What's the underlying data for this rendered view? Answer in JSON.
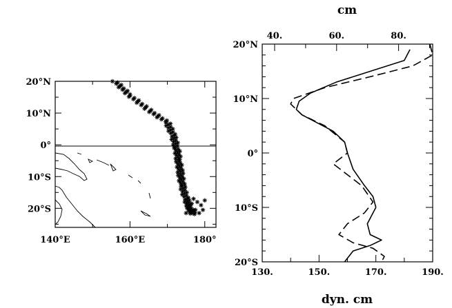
{
  "chart_data": [
    {
      "type": "scatter",
      "title": "",
      "xlabel": "",
      "ylabel": "",
      "xlim": [
        140,
        183
      ],
      "ylim": [
        -26,
        20
      ],
      "x_ticks": [
        140,
        160,
        180
      ],
      "x_tick_labels": [
        "140°E",
        "160°E",
        "180°"
      ],
      "y_ticks": [
        20,
        10,
        0,
        -10,
        -20
      ],
      "y_tick_labels": [
        "20°N",
        "10°N",
        "0°",
        "10°S",
        "20°S"
      ],
      "marker": "asterisk",
      "track": {
        "x": [
          156,
          160,
          165,
          170,
          171.5,
          172.5,
          173,
          173.5,
          174,
          175,
          176,
          177
        ],
        "y": [
          20,
          15.5,
          11,
          7,
          3,
          -1,
          -5,
          -9,
          -13,
          -17,
          -20,
          -22
        ]
      },
      "scatter_points": {
        "x": [
          177,
          178,
          179,
          180,
          176,
          177.5,
          179.5,
          175,
          178.5,
          176.5
        ],
        "y": [
          -17,
          -18,
          -19,
          -17.5,
          -19.5,
          -20.5,
          -20.5,
          -21.5,
          -21.5,
          -18.5
        ]
      },
      "grid": false,
      "has_coastlines": true
    },
    {
      "type": "line",
      "title": "",
      "xlabel_top": "cm",
      "xlabel_bottom": "dyn. cm",
      "xlim_top": [
        36,
        91
      ],
      "xlim_bottom": [
        130,
        190
      ],
      "x_top_ticks": [
        40,
        60,
        80
      ],
      "x_top_tick_labels": [
        "40.",
        "60.",
        "80."
      ],
      "x_bottom_ticks": [
        130,
        150,
        170,
        190
      ],
      "x_bottom_tick_labels": [
        "130.",
        "150.",
        "170.",
        "190."
      ],
      "ylim": [
        -20,
        20
      ],
      "y_ticks": [
        20,
        10,
        0,
        -10,
        -20
      ],
      "y_tick_labels": [
        "20°N",
        "10°N",
        "0°",
        "10°S",
        "20°S"
      ],
      "series": [
        {
          "style": "solid",
          "lat": [
            19,
            17,
            15,
            13,
            11,
            9.5,
            8,
            7,
            4,
            2,
            0,
            -3,
            -6,
            -8,
            -10,
            -13,
            -15,
            -16,
            -17,
            -18,
            -20
          ],
          "value": [
            182,
            180,
            168,
            156,
            147,
            143,
            142,
            144,
            155,
            159,
            160,
            162,
            166,
            169,
            170,
            167,
            168,
            172,
            168,
            162,
            159
          ]
        },
        {
          "style": "dashed",
          "lat": [
            20,
            18,
            16,
            14,
            12,
            10,
            9,
            7,
            5,
            2,
            0,
            -2,
            -4,
            -6,
            -9,
            -11,
            -13,
            -15,
            -16.5,
            -17.5,
            -19,
            -20
          ],
          "value": [
            189,
            190,
            183,
            168,
            152,
            141,
            140,
            144,
            152,
            159,
            160,
            155,
            160,
            165,
            169,
            166,
            160,
            157,
            162,
            169,
            173,
            172
          ]
        }
      ],
      "grid": false
    }
  ]
}
